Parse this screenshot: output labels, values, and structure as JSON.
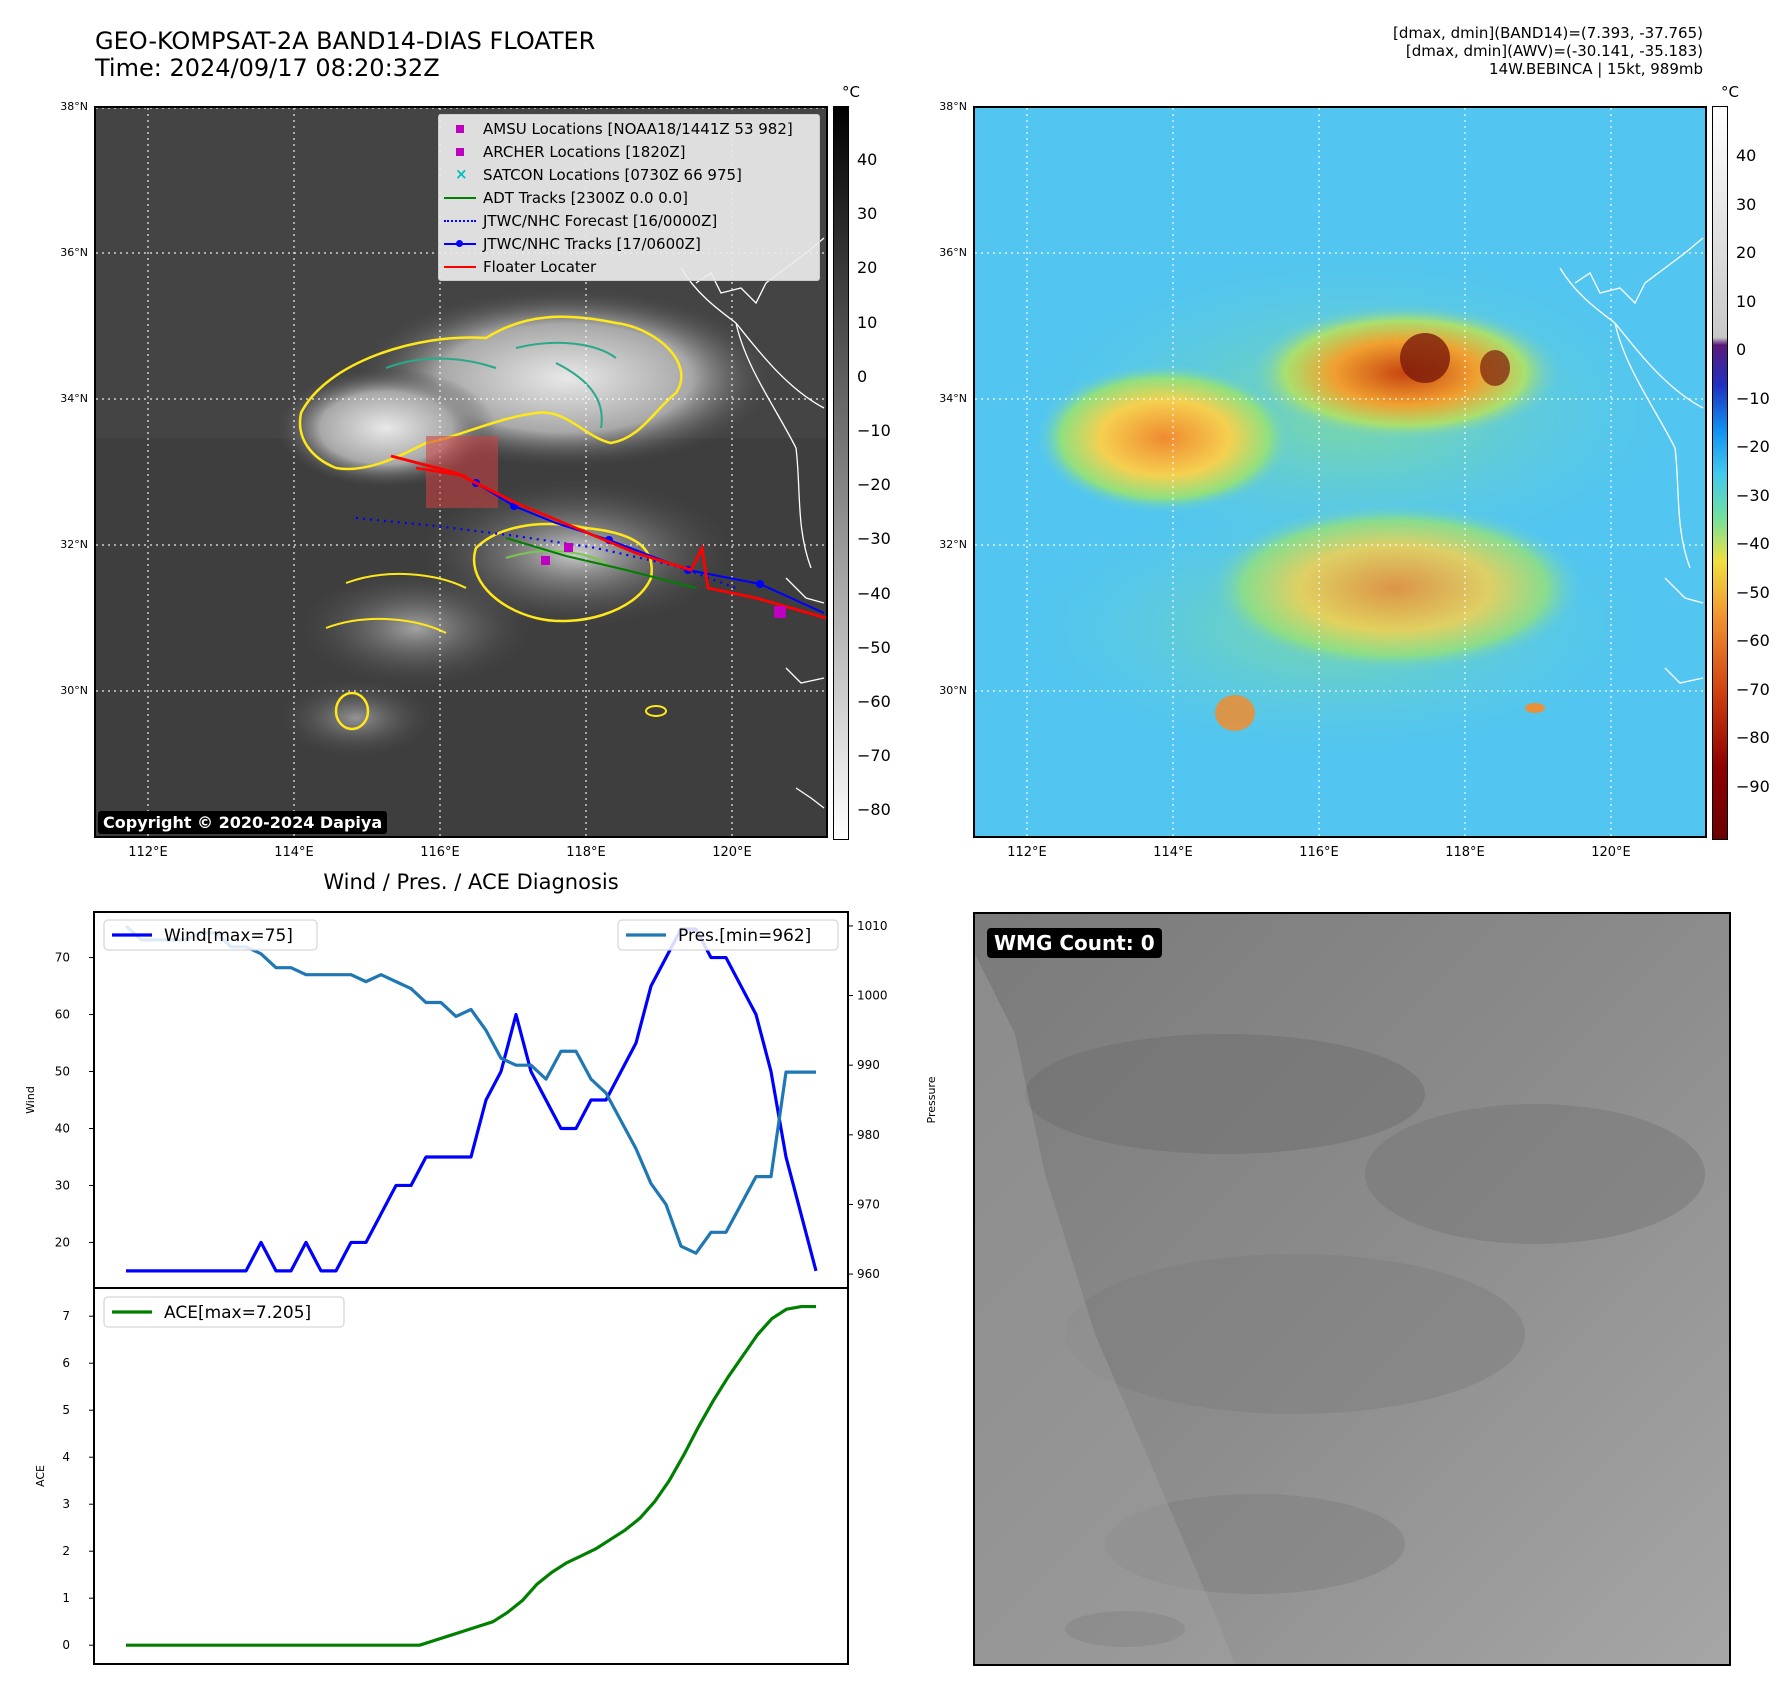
{
  "header": {
    "title_line1": "GEO-KOMPSAT-2A BAND14-DIAS FLOATER",
    "title_line2": "Time: 2024/09/17 08:20:32Z",
    "info_line1": "[dmax, dmin](BAND14)=(7.393, -37.765)",
    "info_line2": "[dmax, dmin](AWV)=(-30.141, -35.183)",
    "info_line3": "14W.BEBINCA | 15kt, 989mb"
  },
  "map": {
    "lat_labels": [
      "38°N",
      "36°N",
      "34°N",
      "32°N",
      "30°N"
    ],
    "lon_labels": [
      "112°E",
      "114°E",
      "116°E",
      "118°E",
      "120°E"
    ],
    "copyright": "Copyright © 2020-2024 Dapiya",
    "legend": [
      {
        "label": "AMSU Locations [NOAA18/1441Z 53 982]",
        "symbol": "square",
        "color": "#c000c0"
      },
      {
        "label": "ARCHER Locations [1820Z]",
        "symbol": "square",
        "color": "#c000c0"
      },
      {
        "label": "SATCON Locations [0730Z 66 975]",
        "symbol": "x",
        "color": "#00c0c0"
      },
      {
        "label": "ADT Tracks [2300Z 0.0 0.0]",
        "symbol": "line",
        "color": "#008000"
      },
      {
        "label": "JTWC/NHC Forecast [16/0000Z]",
        "symbol": "dotted",
        "color": "#0000ff"
      },
      {
        "label": "JTWC/NHC Tracks [17/0600Z]",
        "symbol": "line-dot",
        "color": "#0000ff"
      },
      {
        "label": "Floater Locater",
        "symbol": "line",
        "color": "#ff0000"
      }
    ]
  },
  "colorbar_left": {
    "unit": "°C",
    "ticks": [
      "40",
      "30",
      "20",
      "10",
      "0",
      "−10",
      "−20",
      "−30",
      "−40",
      "−50",
      "−60",
      "−70",
      "−80"
    ]
  },
  "colorbar_right": {
    "unit": "°C",
    "ticks": [
      "40",
      "30",
      "20",
      "10",
      "0",
      "−10",
      "−20",
      "−30",
      "−40",
      "−50",
      "−60",
      "−70",
      "−80",
      "−90"
    ]
  },
  "wmg": {
    "label": "WMG Count: 0"
  },
  "chart_data": [
    {
      "type": "line",
      "title": "Wind / Pres. / ACE Diagnosis",
      "ylabel": "Wind",
      "y2label": "Pressure",
      "ylim": [
        12,
        78
      ],
      "y2lim": [
        958,
        1012
      ],
      "yticks": [
        20,
        30,
        40,
        50,
        60,
        70
      ],
      "y2ticks": [
        960,
        970,
        980,
        990,
        1000,
        1010
      ],
      "series": [
        {
          "name": "Wind[max=75]",
          "color": "#0000ff",
          "values": [
            15,
            15,
            15,
            15,
            15,
            15,
            15,
            15,
            15,
            20,
            15,
            15,
            20,
            15,
            15,
            20,
            20,
            25,
            30,
            30,
            35,
            35,
            35,
            35,
            45,
            50,
            60,
            50,
            45,
            40,
            40,
            45,
            45,
            50,
            55,
            65,
            70,
            75,
            75,
            70,
            70,
            65,
            60,
            50,
            35,
            25,
            15
          ]
        },
        {
          "name": "Pres.[min=962]",
          "color": "#1f77b4",
          "values": [
            1010,
            1008,
            1008,
            1008,
            1008,
            1009,
            1009,
            1007,
            1007,
            1006,
            1004,
            1004,
            1003,
            1003,
            1003,
            1003,
            1002,
            1003,
            1002,
            1001,
            999,
            999,
            997,
            998,
            995,
            991,
            990,
            990,
            988,
            992,
            992,
            988,
            986,
            982,
            978,
            973,
            970,
            964,
            963,
            966,
            966,
            970,
            974,
            974,
            989,
            989,
            989
          ]
        }
      ]
    },
    {
      "type": "line",
      "ylabel": "ACE",
      "ylim": [
        -0.4,
        7.6
      ],
      "yticks": [
        0,
        1,
        2,
        3,
        4,
        5,
        6,
        7
      ],
      "series": [
        {
          "name": "ACE[max=7.205]",
          "color": "#008000",
          "values": [
            0,
            0,
            0,
            0,
            0,
            0,
            0,
            0,
            0,
            0,
            0,
            0,
            0,
            0,
            0,
            0,
            0,
            0,
            0,
            0,
            0,
            0.1,
            0.2,
            0.3,
            0.4,
            0.5,
            0.7,
            0.95,
            1.3,
            1.55,
            1.75,
            1.9,
            2.05,
            2.25,
            2.45,
            2.7,
            3.05,
            3.5,
            4.05,
            4.65,
            5.2,
            5.7,
            6.15,
            6.6,
            6.95,
            7.15,
            7.205,
            7.205
          ]
        }
      ]
    }
  ]
}
